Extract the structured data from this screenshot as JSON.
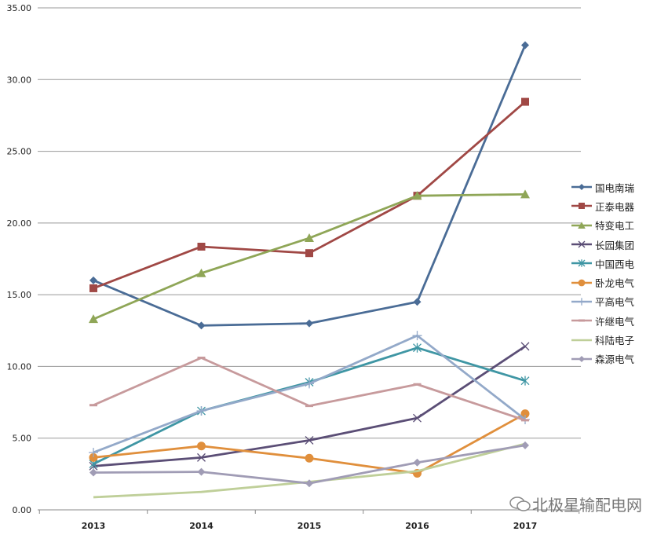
{
  "chart_data": {
    "type": "line",
    "categories": [
      "2013",
      "2014",
      "2015",
      "2016",
      "2017"
    ],
    "ylim": [
      0,
      35
    ],
    "yticks": [
      "0.00",
      "5.00",
      "10.00",
      "15.00",
      "20.00",
      "25.00",
      "30.00",
      "35.00"
    ],
    "grid": true,
    "legend_position": "right",
    "series": [
      {
        "name": "国电南瑞",
        "color": "#4a6c96",
        "marker": "diamond",
        "values": [
          16.0,
          12.85,
          13.0,
          14.5,
          32.4
        ]
      },
      {
        "name": "正泰电器",
        "color": "#a04845",
        "marker": "square",
        "values": [
          15.45,
          18.35,
          17.9,
          21.9,
          28.45
        ]
      },
      {
        "name": "特变电工",
        "color": "#8fa657",
        "marker": "triangle",
        "values": [
          13.3,
          16.5,
          18.95,
          21.9,
          22.0
        ]
      },
      {
        "name": "长园集团",
        "color": "#5b4e76",
        "marker": "x",
        "values": [
          3.05,
          3.65,
          4.85,
          6.4,
          11.4
        ]
      },
      {
        "name": "中国西电",
        "color": "#3f96a4",
        "marker": "star",
        "values": [
          3.2,
          6.9,
          8.9,
          11.3,
          9.0
        ]
      },
      {
        "name": "卧龙电气",
        "color": "#e08f3c",
        "marker": "circle",
        "values": [
          3.65,
          4.45,
          3.6,
          2.55,
          6.7
        ]
      },
      {
        "name": "平高电气",
        "color": "#93a9c9",
        "marker": "plus",
        "values": [
          4.0,
          6.9,
          8.8,
          12.15,
          6.3
        ]
      },
      {
        "name": "许继电气",
        "color": "#c79a9c",
        "marker": "dash",
        "values": [
          7.3,
          10.6,
          7.25,
          8.75,
          6.25
        ]
      },
      {
        "name": "科陆电子",
        "color": "#bfcf99",
        "marker": "none",
        "values": [
          0.88,
          1.25,
          1.95,
          2.7,
          4.6
        ]
      },
      {
        "name": "森源电气",
        "color": "#a09cb5",
        "marker": "diamond",
        "values": [
          2.6,
          2.65,
          1.85,
          3.3,
          4.5
        ]
      }
    ]
  },
  "watermark": "北极星输配电网"
}
